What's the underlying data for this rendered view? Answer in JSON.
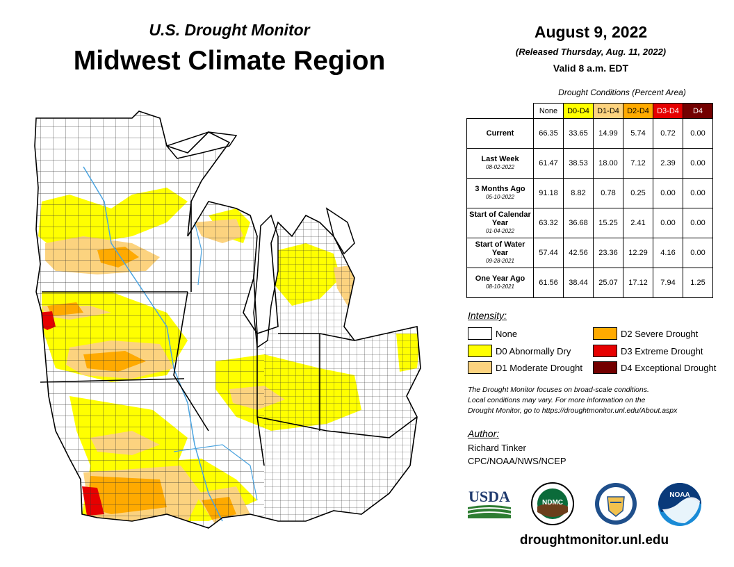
{
  "header": {
    "subtitle": "U.S. Drought Monitor",
    "title": "Midwest Climate Region"
  },
  "info": {
    "date": "August 9, 2022",
    "released": "(Released Thursday, Aug. 11, 2022)",
    "valid": "Valid 8 a.m. EDT"
  },
  "table": {
    "caption": "Drought Conditions (Percent Area)",
    "columns": [
      {
        "label": "None",
        "color": "#ffffff",
        "text_color": "#000000"
      },
      {
        "label": "D0-D4",
        "color": "#ffff00",
        "text_color": "#000000"
      },
      {
        "label": "D1-D4",
        "color": "#fcd37f",
        "text_color": "#000000"
      },
      {
        "label": "D2-D4",
        "color": "#ffaa00",
        "text_color": "#000000"
      },
      {
        "label": "D3-D4",
        "color": "#e60000",
        "text_color": "#ffffff"
      },
      {
        "label": "D4",
        "color": "#730000",
        "text_color": "#ffffff"
      }
    ],
    "rows": [
      {
        "label": "Current",
        "date": "",
        "values": [
          "66.35",
          "33.65",
          "14.99",
          "5.74",
          "0.72",
          "0.00"
        ]
      },
      {
        "label": "Last Week",
        "date": "08-02-2022",
        "values": [
          "61.47",
          "38.53",
          "18.00",
          "7.12",
          "2.39",
          "0.00"
        ]
      },
      {
        "label": "3 Months Ago",
        "date": "05-10-2022",
        "values": [
          "91.18",
          "8.82",
          "0.78",
          "0.25",
          "0.00",
          "0.00"
        ]
      },
      {
        "label": "Start of Calendar Year",
        "date": "01-04-2022",
        "values": [
          "63.32",
          "36.68",
          "15.25",
          "2.41",
          "0.00",
          "0.00"
        ]
      },
      {
        "label": "Start of Water Year",
        "date": "09-28-2021",
        "values": [
          "57.44",
          "42.56",
          "23.36",
          "12.29",
          "4.16",
          "0.00"
        ]
      },
      {
        "label": "One Year Ago",
        "date": "08-10-2021",
        "values": [
          "61.56",
          "38.44",
          "25.07",
          "17.12",
          "7.94",
          "1.25"
        ]
      }
    ]
  },
  "legend": {
    "heading": "Intensity:",
    "items": [
      {
        "label": "None",
        "color": "#ffffff"
      },
      {
        "label": "D0 Abnormally Dry",
        "color": "#ffff00"
      },
      {
        "label": "D1 Moderate Drought",
        "color": "#fcd37f"
      },
      {
        "label": "D2 Severe Drought",
        "color": "#ffaa00"
      },
      {
        "label": "D3 Extreme Drought",
        "color": "#e60000"
      },
      {
        "label": "D4 Exceptional Drought",
        "color": "#730000"
      }
    ]
  },
  "note": {
    "line1": "The Drought Monitor focuses on broad-scale conditions.",
    "line2": "Local conditions may vary. For more information on the",
    "line3": "Drought Monitor, go to https://droughtmonitor.unl.edu/About.aspx"
  },
  "author": {
    "heading": "Author:",
    "name": "Richard Tinker",
    "org": "CPC/NOAA/NWS/NCEP"
  },
  "logos": {
    "usda": "USDA",
    "ndmc": "NDMC",
    "noaa": "NOAA"
  },
  "footer": {
    "website": "droughtmonitor.unl.edu"
  }
}
